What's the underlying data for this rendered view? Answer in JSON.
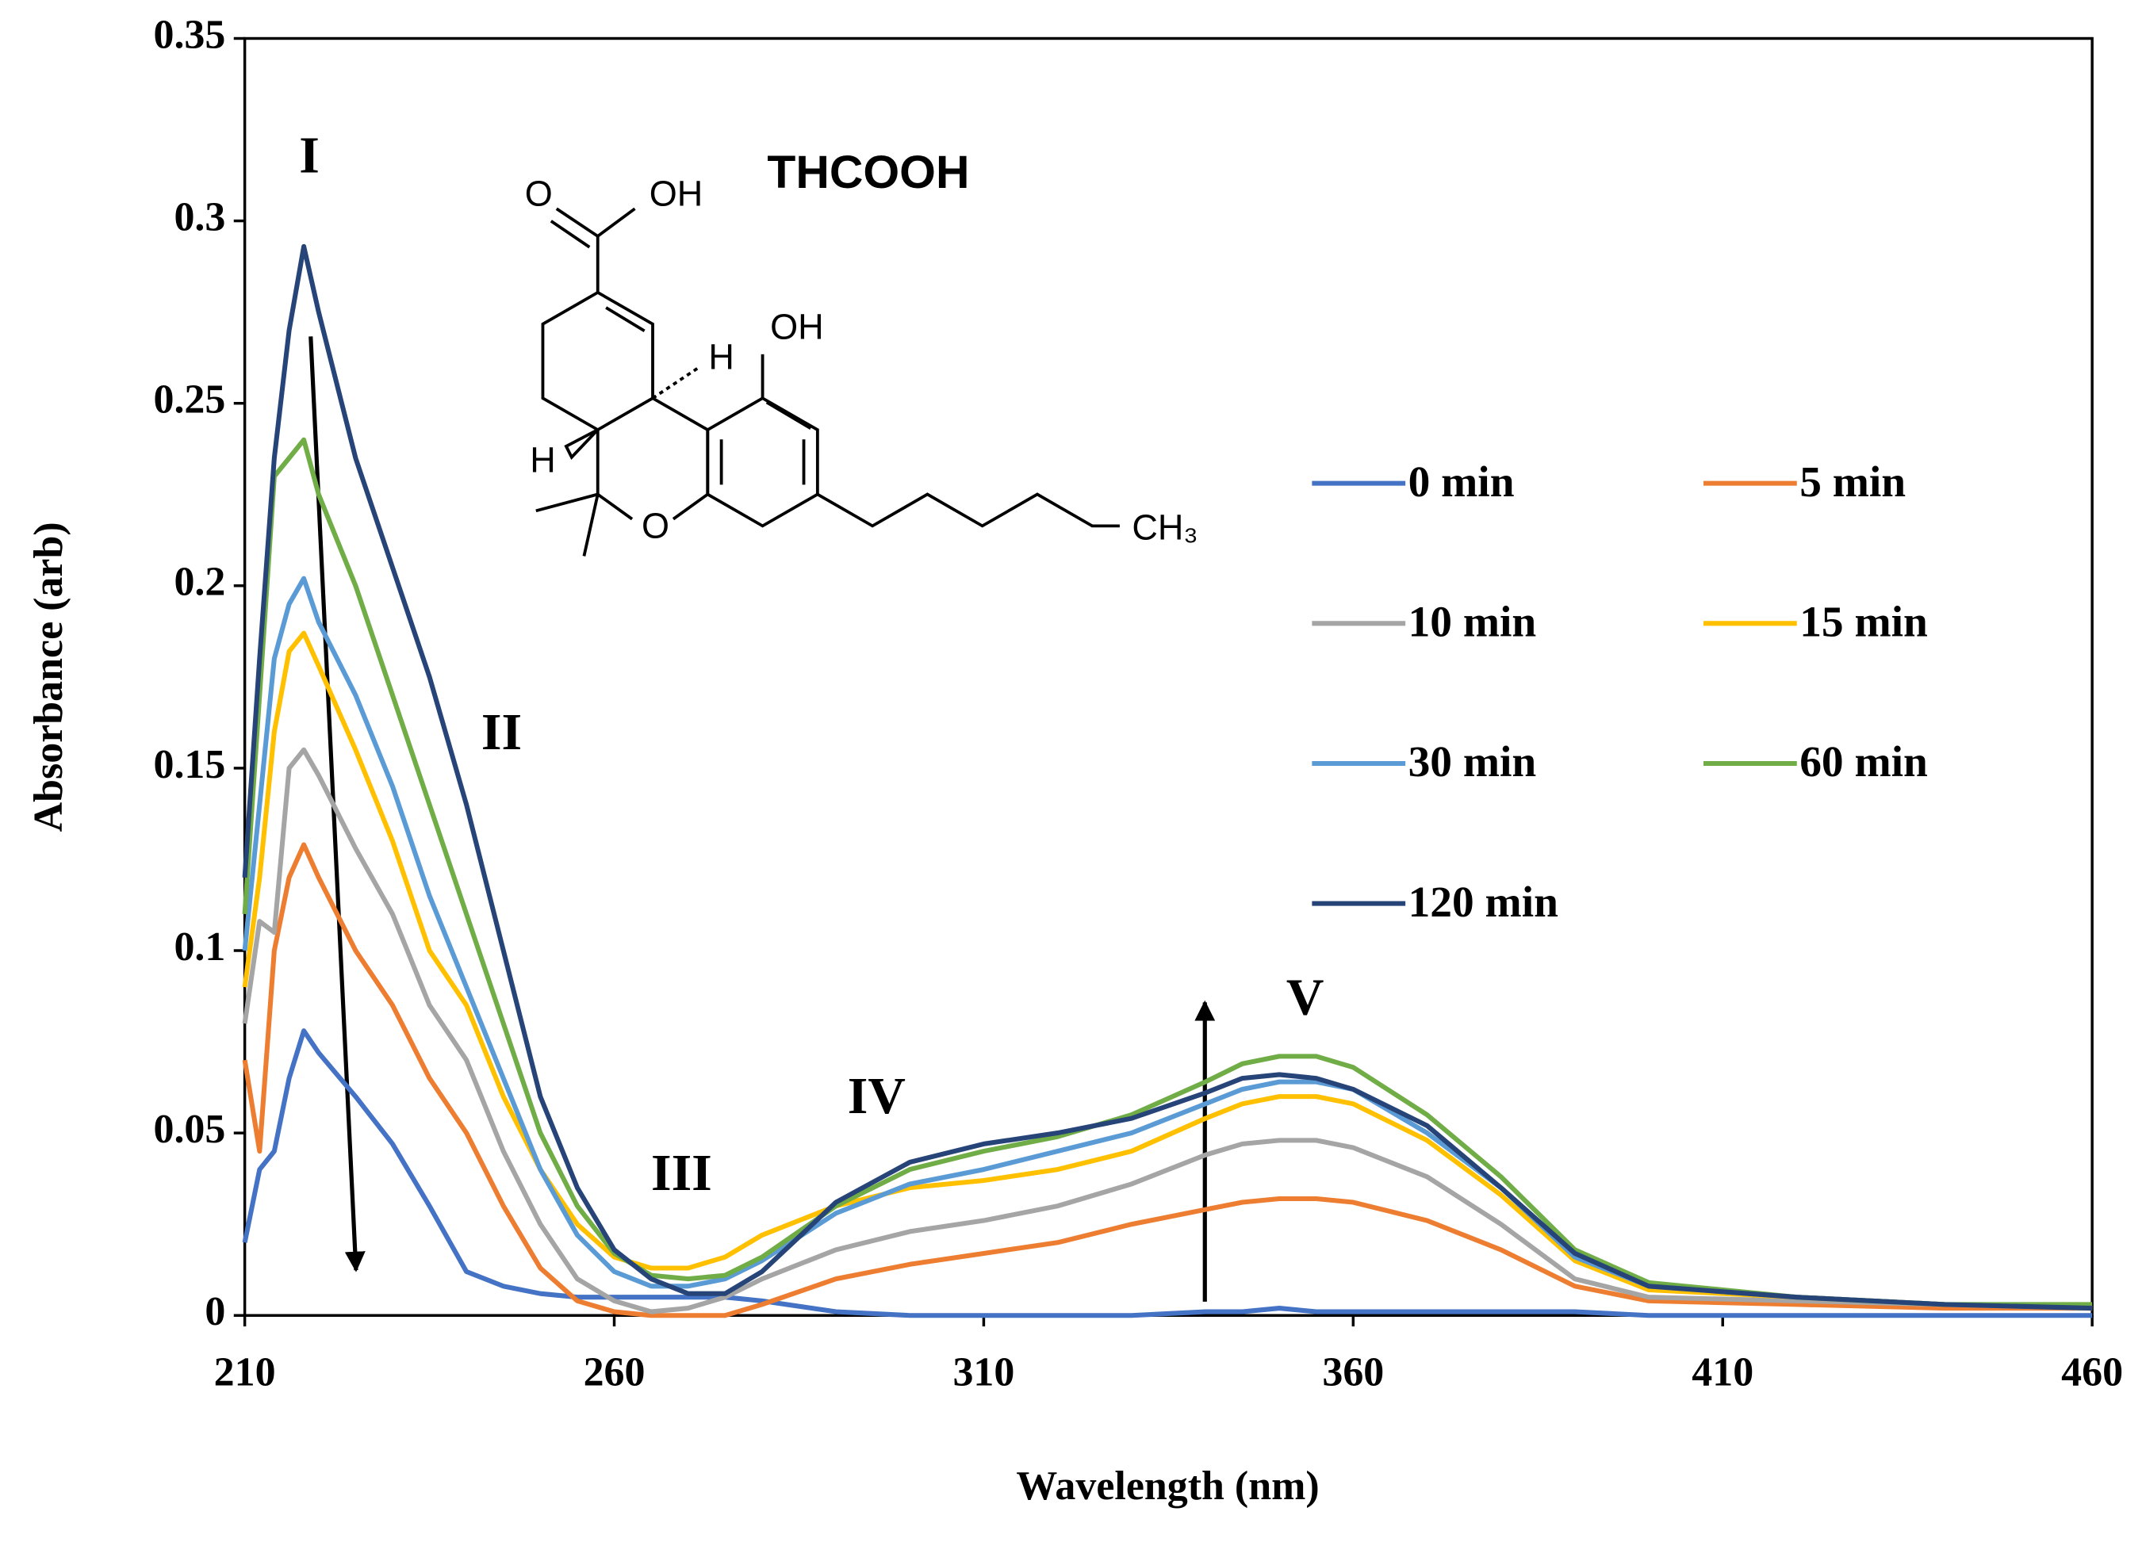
{
  "chart_data": {
    "type": "line",
    "x_label": "Wavelength (nm)",
    "y_label": "Absorbance (arb)",
    "x": [
      210,
      212,
      214,
      216,
      218,
      220,
      225,
      230,
      235,
      240,
      245,
      250,
      255,
      260,
      265,
      270,
      275,
      280,
      290,
      300,
      310,
      320,
      330,
      340,
      345,
      350,
      355,
      360,
      370,
      380,
      390,
      400,
      420,
      440,
      460
    ],
    "xlim": [
      210,
      460
    ],
    "xticks": [
      210,
      260,
      310,
      360,
      410,
      460
    ],
    "ylim": [
      0,
      0.35
    ],
    "yticks": [
      0,
      0.05,
      0.1,
      0.15,
      0.2,
      0.25,
      0.3,
      0.35
    ],
    "grid": false,
    "series": [
      {
        "name": "0 min",
        "color": "#4472c4",
        "values": [
          0.02,
          0.04,
          0.045,
          0.065,
          0.078,
          0.072,
          0.06,
          0.047,
          0.03,
          0.012,
          0.008,
          0.006,
          0.005,
          0.005,
          0.005,
          0.005,
          0.005,
          0.004,
          0.001,
          0,
          0,
          0,
          0,
          0.001,
          0.001,
          0.002,
          0.001,
          0.001,
          0.001,
          0.001,
          0.001,
          0,
          0,
          0,
          0
        ]
      },
      {
        "name": "5 min",
        "color": "#ed7d31",
        "values": [
          0.07,
          0.045,
          0.1,
          0.12,
          0.129,
          0.12,
          0.1,
          0.085,
          0.065,
          0.05,
          0.03,
          0.013,
          0.004,
          0.001,
          0,
          0,
          0,
          0.003,
          0.01,
          0.014,
          0.017,
          0.02,
          0.025,
          0.029,
          0.031,
          0.032,
          0.032,
          0.031,
          0.026,
          0.018,
          0.008,
          0.004,
          0.003,
          0.002,
          0.002
        ]
      },
      {
        "name": "10 min",
        "color": "#a5a5a5",
        "values": [
          0.08,
          0.108,
          0.105,
          0.15,
          0.155,
          0.148,
          0.128,
          0.11,
          0.085,
          0.07,
          0.045,
          0.025,
          0.01,
          0.004,
          0.001,
          0.002,
          0.005,
          0.01,
          0.018,
          0.023,
          0.026,
          0.03,
          0.036,
          0.044,
          0.047,
          0.048,
          0.048,
          0.046,
          0.038,
          0.025,
          0.01,
          0.005,
          0.004,
          0.003,
          0.002
        ]
      },
      {
        "name": "15 min",
        "color": "#ffc000",
        "values": [
          0.09,
          0.12,
          0.16,
          0.182,
          0.187,
          0.178,
          0.155,
          0.13,
          0.1,
          0.085,
          0.06,
          0.04,
          0.025,
          0.016,
          0.013,
          0.013,
          0.016,
          0.022,
          0.03,
          0.035,
          0.037,
          0.04,
          0.045,
          0.054,
          0.058,
          0.06,
          0.06,
          0.058,
          0.048,
          0.033,
          0.015,
          0.007,
          0.005,
          0.003,
          0.002
        ]
      },
      {
        "name": "30 min",
        "color": "#5b9bd5",
        "values": [
          0.1,
          0.14,
          0.18,
          0.195,
          0.202,
          0.19,
          0.17,
          0.145,
          0.115,
          0.09,
          0.065,
          0.04,
          0.022,
          0.012,
          0.008,
          0.008,
          0.01,
          0.015,
          0.028,
          0.036,
          0.04,
          0.045,
          0.05,
          0.058,
          0.062,
          0.064,
          0.064,
          0.062,
          0.05,
          0.035,
          0.016,
          0.008,
          0.005,
          0.003,
          0.002
        ]
      },
      {
        "name": "60 min",
        "color": "#70ad47",
        "values": [
          0.11,
          0.17,
          0.23,
          0.235,
          0.24,
          0.225,
          0.2,
          0.17,
          0.14,
          0.11,
          0.08,
          0.05,
          0.03,
          0.017,
          0.011,
          0.01,
          0.011,
          0.016,
          0.03,
          0.04,
          0.045,
          0.049,
          0.055,
          0.064,
          0.069,
          0.071,
          0.071,
          0.068,
          0.055,
          0.038,
          0.018,
          0.009,
          0.005,
          0.003,
          0.003
        ]
      },
      {
        "name": "120 min",
        "color": "#264478",
        "values": [
          0.12,
          0.18,
          0.235,
          0.27,
          0.293,
          0.275,
          0.235,
          0.205,
          0.175,
          0.14,
          0.1,
          0.06,
          0.035,
          0.018,
          0.01,
          0.006,
          0.006,
          0.012,
          0.031,
          0.042,
          0.047,
          0.05,
          0.054,
          0.061,
          0.065,
          0.066,
          0.065,
          0.062,
          0.052,
          0.035,
          0.017,
          0.008,
          0.005,
          0.003,
          0.002
        ]
      }
    ],
    "annotations": [
      "I",
      "II",
      "III",
      "IV",
      "V",
      "THCOOH"
    ],
    "structure_labels": [
      "O",
      "OH",
      "OH",
      "H",
      "H",
      "O",
      "CH₃"
    ]
  }
}
